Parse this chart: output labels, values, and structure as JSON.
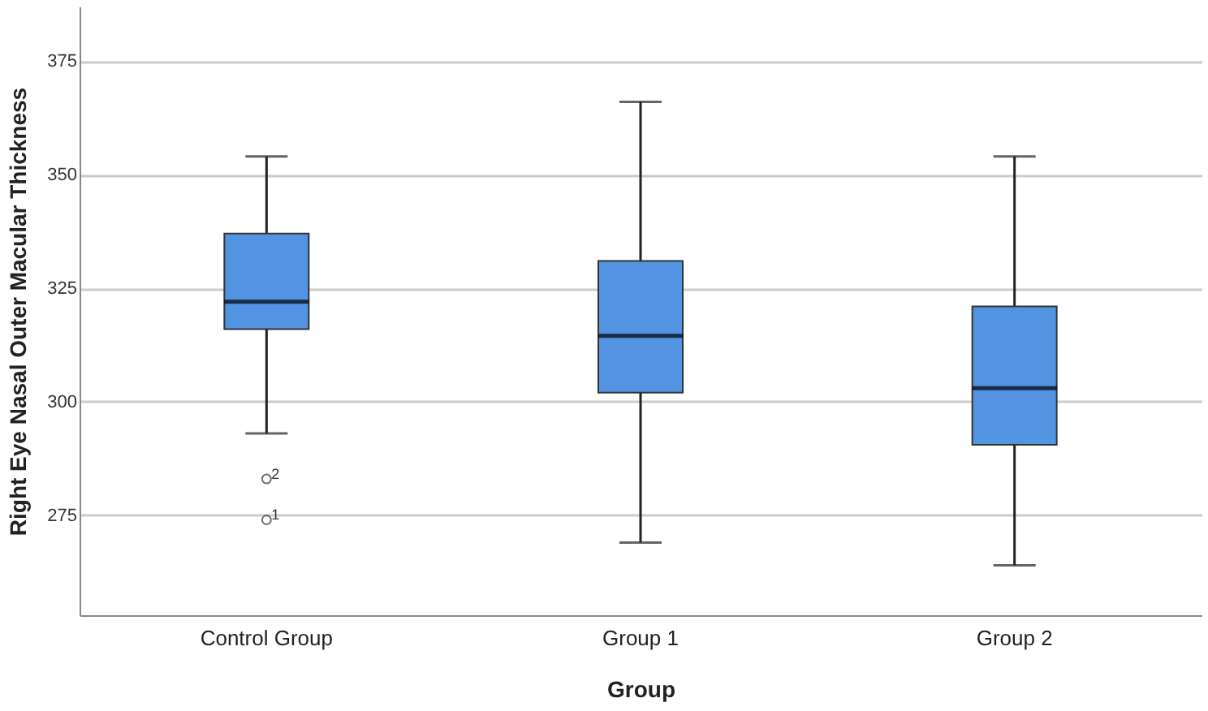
{
  "chart_data": {
    "type": "box",
    "xlabel": "Group",
    "ylabel": "Right Eye Nasal Outer Macular Thickness",
    "categories": [
      "Control Group",
      "Group 1",
      "Group 2"
    ],
    "color": "#5294e2",
    "boxes": [
      {
        "low": 293,
        "q1": 316,
        "median": 322,
        "q3": 337,
        "high": 354,
        "outliers": [
          283,
          274
        ]
      },
      {
        "low": 269,
        "q1": 302,
        "median": 314.5,
        "q3": 331,
        "high": 366
      },
      {
        "low": 264,
        "q1": 290.5,
        "median": 303,
        "q3": 321,
        "high": 354
      }
    ],
    "ylim": [
      253,
      387
    ],
    "yticks": [
      275,
      300,
      325,
      350,
      375
    ],
    "grid": "y",
    "annotations": [
      "2",
      "1"
    ]
  }
}
